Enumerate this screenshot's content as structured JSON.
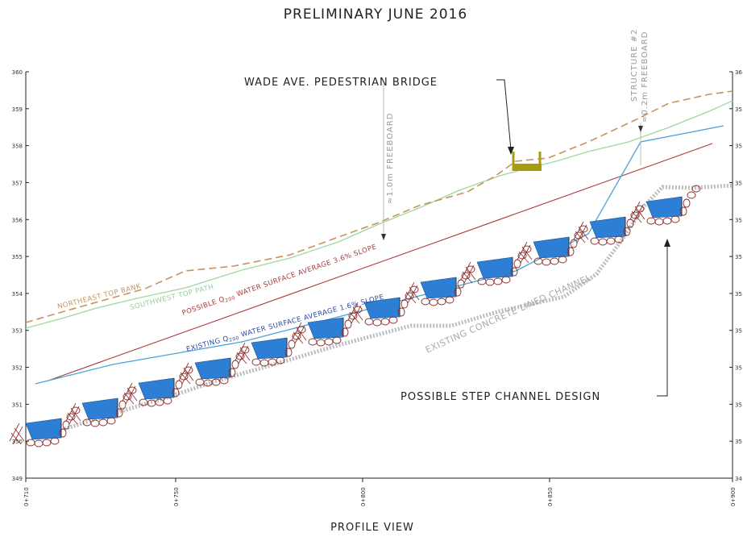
{
  "drawing": {
    "title": "PRELIMINARY JUNE 2016",
    "view_label": "PROFILE VIEW",
    "bridge_callout": "WADE AVE. PEDESTRIAN BRIDGE",
    "step_callout": "POSSIBLE STEP CHANNEL DESIGN",
    "freeboard_1": "≈1.0m FREEBOARD",
    "structure_label": "STRUCTURE #2",
    "freeboard_2": "≈0.2m FREEBOARD"
  },
  "axes": {
    "y_ticks_left": [
      "360",
      "359",
      "358",
      "357",
      "356",
      "355",
      "354",
      "353",
      "352",
      "351",
      "350",
      "349"
    ],
    "y_ticks_right": [
      "36",
      "35",
      "35",
      "35",
      "35",
      "35",
      "35",
      "35",
      "35",
      "35",
      "35",
      "34"
    ],
    "x_ticks": [
      "0+710",
      "0+750",
      "0+800",
      "0+850",
      "0+900"
    ]
  },
  "lines": {
    "northeast": {
      "label": "NORTHEAST TOP BANK",
      "color": "#c8935a"
    },
    "southwest": {
      "label": "SOUTHWEST TOP PATH",
      "color": "#8fd090"
    },
    "possible_q200": {
      "label_a": "POSSIBLE Q",
      "label_sub": "200",
      "label_b": " WATER SURFACE   AVERAGE 3.6% SLOPE",
      "color": "#a83a3a"
    },
    "existing_q200": {
      "label_a": "EXISTING Q",
      "label_sub": "200",
      "label_b": " WATER SURFACE   AVERAGE 1.6% SLOPE",
      "color": "#2a4aa8"
    },
    "concrete": {
      "label": "EXISTING CONCRETE LINED CHANNEL",
      "color": "#bbbbbb"
    },
    "existing_ws_color": "#4aa3d9",
    "pool_color": "#2d7fd6",
    "rock_color": "#8b2a2a",
    "bridge_color": "#a89b10"
  }
}
